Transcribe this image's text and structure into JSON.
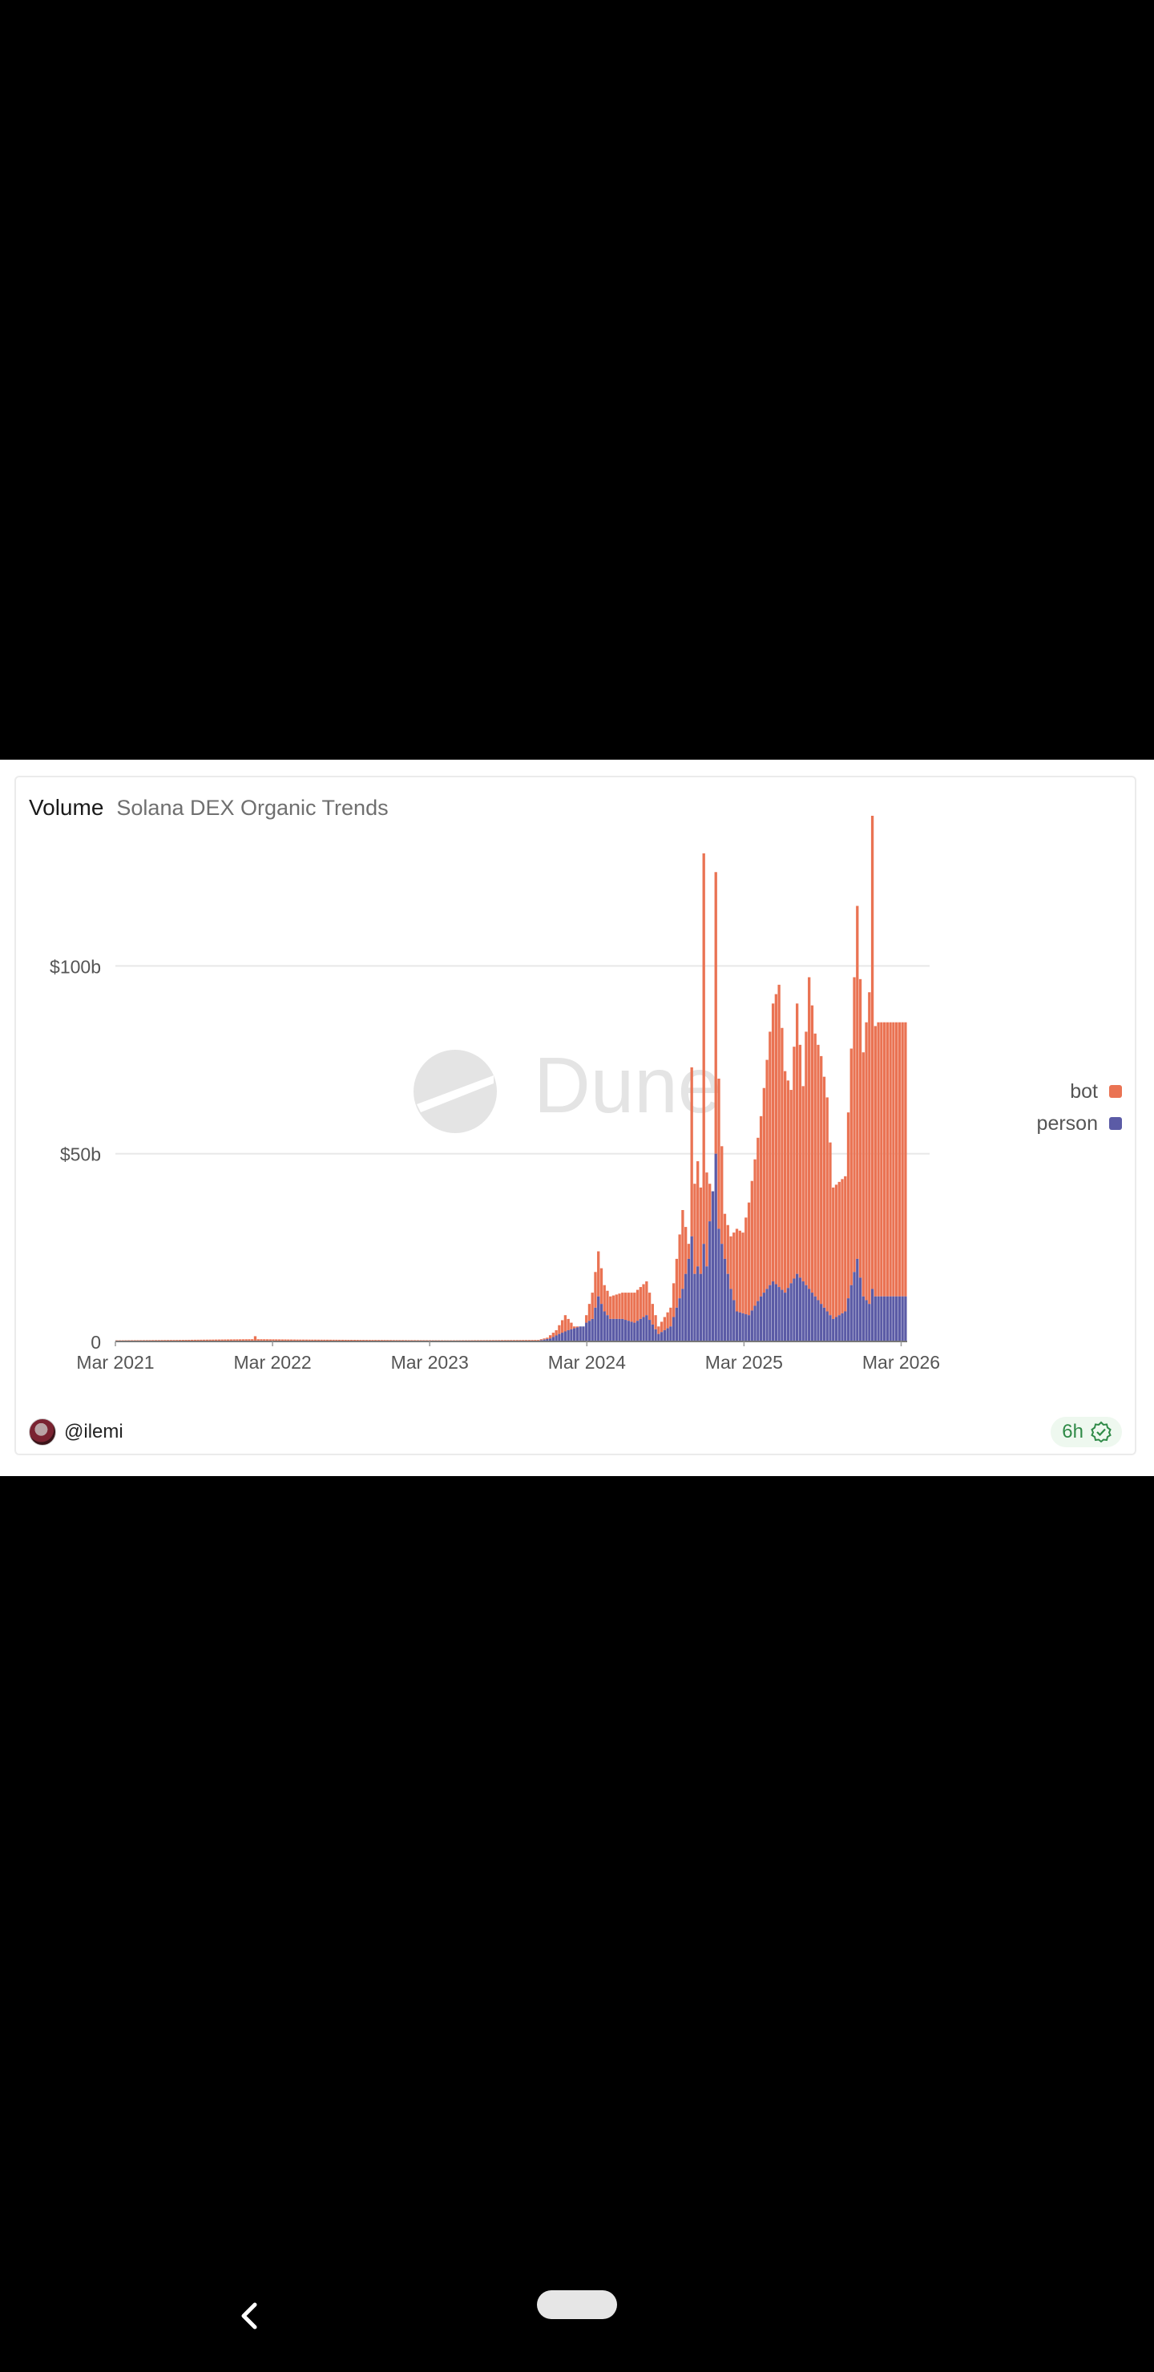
{
  "card": {
    "title": "Volume",
    "subtitle": "Solana DEX Organic Trends",
    "watermark": "Dune",
    "author": "@ilemi",
    "freshness": "6h"
  },
  "colors": {
    "bot": "#ea7353",
    "person": "#5b5ba6",
    "grid": "#e8e8e8",
    "axis": "#555555"
  },
  "chart_data": {
    "type": "bar",
    "stacked": true,
    "title": "Volume",
    "subtitle": "Solana DEX Organic Trends",
    "xlabel": "",
    "ylabel": "",
    "ylim": [
      0,
      140
    ],
    "y_unit": "billion USD",
    "y_ticks": [
      {
        "value": 0,
        "label": "0"
      },
      {
        "value": 50,
        "label": "$50b"
      },
      {
        "value": 100,
        "label": "$100b"
      }
    ],
    "x_tick_labels": [
      "Mar 2021",
      "Mar 2022",
      "Mar 2023",
      "Mar 2024",
      "Mar 2025",
      "Mar 2026"
    ],
    "legend_position": "right",
    "series_names": [
      "bot",
      "person"
    ],
    "anchors_note": "Weekly bars; values below are anchor points (week index from Mar 2021, billions USD) interpolated to weekly series.",
    "weeks": 263,
    "bot_anchors": [
      [
        0,
        0.3
      ],
      [
        20,
        0.4
      ],
      [
        45,
        0.6
      ],
      [
        46,
        1.4
      ],
      [
        47,
        0.6
      ],
      [
        60,
        0.5
      ],
      [
        85,
        0.4
      ],
      [
        110,
        0.3
      ],
      [
        140,
        0.4
      ],
      [
        143,
        1
      ],
      [
        146,
        3
      ],
      [
        149,
        7
      ],
      [
        152,
        4
      ],
      [
        155,
        4
      ],
      [
        158,
        13
      ],
      [
        160,
        24
      ],
      [
        162,
        15
      ],
      [
        164,
        12
      ],
      [
        168,
        13
      ],
      [
        172,
        13
      ],
      [
        176,
        16
      ],
      [
        178,
        10
      ],
      [
        180,
        4
      ],
      [
        184,
        9
      ],
      [
        188,
        35
      ],
      [
        190,
        26
      ],
      [
        191,
        73
      ],
      [
        192,
        42
      ],
      [
        193,
        48
      ],
      [
        194,
        41
      ],
      [
        195,
        130
      ],
      [
        196,
        45
      ],
      [
        197,
        42
      ],
      [
        198,
        40
      ],
      [
        199,
        125
      ],
      [
        200,
        70
      ],
      [
        202,
        34
      ],
      [
        204,
        28
      ],
      [
        206,
        30
      ],
      [
        208,
        29
      ],
      [
        210,
        37
      ],
      [
        214,
        60
      ],
      [
        218,
        90
      ],
      [
        220,
        95
      ],
      [
        222,
        72
      ],
      [
        224,
        67
      ],
      [
        226,
        90
      ],
      [
        228,
        68
      ],
      [
        230,
        97
      ],
      [
        232,
        82
      ],
      [
        234,
        76
      ],
      [
        236,
        65
      ],
      [
        238,
        41
      ],
      [
        242,
        44
      ],
      [
        244,
        78
      ],
      [
        246,
        116
      ],
      [
        248,
        77
      ],
      [
        250,
        93
      ],
      [
        251,
        140
      ],
      [
        252,
        84
      ],
      [
        253,
        85
      ]
    ],
    "person_anchors": [
      [
        0,
        0.1
      ],
      [
        40,
        0.2
      ],
      [
        90,
        0.15
      ],
      [
        140,
        0.2
      ],
      [
        144,
        0.8
      ],
      [
        147,
        2
      ],
      [
        150,
        3
      ],
      [
        154,
        4
      ],
      [
        156,
        5
      ],
      [
        158,
        6
      ],
      [
        160,
        12
      ],
      [
        162,
        8
      ],
      [
        164,
        6
      ],
      [
        168,
        6
      ],
      [
        172,
        5
      ],
      [
        176,
        7
      ],
      [
        180,
        2
      ],
      [
        184,
        4
      ],
      [
        188,
        14
      ],
      [
        190,
        22
      ],
      [
        191,
        28
      ],
      [
        192,
        18
      ],
      [
        193,
        20
      ],
      [
        194,
        18
      ],
      [
        195,
        26
      ],
      [
        196,
        20
      ],
      [
        197,
        32
      ],
      [
        198,
        43
      ],
      [
        199,
        50
      ],
      [
        200,
        30
      ],
      [
        202,
        22
      ],
      [
        204,
        14
      ],
      [
        206,
        8
      ],
      [
        210,
        7
      ],
      [
        214,
        12
      ],
      [
        218,
        16
      ],
      [
        222,
        13
      ],
      [
        226,
        18
      ],
      [
        230,
        14
      ],
      [
        234,
        10
      ],
      [
        238,
        6
      ],
      [
        242,
        8
      ],
      [
        246,
        22
      ],
      [
        248,
        12
      ],
      [
        250,
        10
      ],
      [
        251,
        14
      ],
      [
        252,
        12
      ],
      [
        253,
        12
      ]
    ]
  }
}
